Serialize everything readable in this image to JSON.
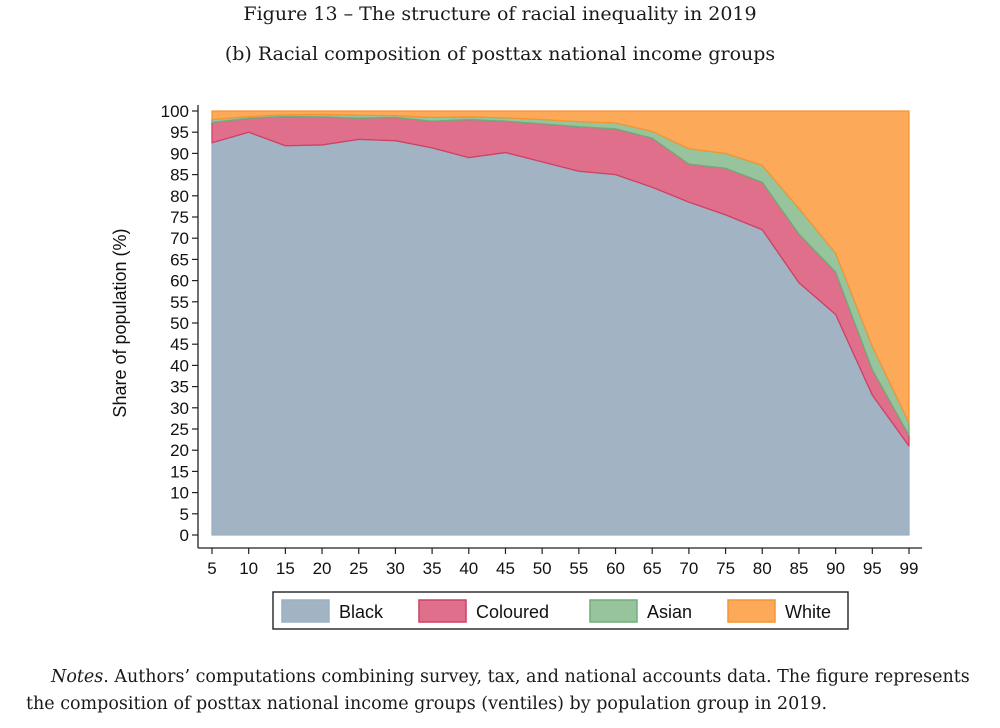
{
  "figure": {
    "title": "Figure 13 – The structure of racial inequality in 2019",
    "subtitle": "(b) Racial composition of posttax national income groups"
  },
  "chart_data": {
    "type": "area",
    "stacked": true,
    "title": "Racial composition of posttax national income groups",
    "xlabel": "",
    "ylabel": "Share of population (%)",
    "ylim": [
      0,
      100
    ],
    "yticks": [
      0,
      5,
      10,
      15,
      20,
      25,
      30,
      35,
      40,
      45,
      50,
      55,
      60,
      65,
      70,
      75,
      80,
      85,
      90,
      95,
      100
    ],
    "x": [
      "5",
      "10",
      "15",
      "20",
      "25",
      "30",
      "35",
      "40",
      "45",
      "50",
      "55",
      "60",
      "65",
      "70",
      "75",
      "80",
      "85",
      "90",
      "95",
      "99"
    ],
    "grid": true,
    "legend_position": "bottom",
    "series": [
      {
        "name": "Black",
        "color": "#a2b3c3",
        "stroke": "#9ab0c4",
        "values": [
          92.5,
          95,
          91.8,
          92,
          93.3,
          93,
          91.3,
          89,
          90.2,
          88,
          85.8,
          85,
          82,
          78.5,
          75.5,
          72,
          59.5,
          52,
          33,
          21
        ]
      },
      {
        "name": "Coloured",
        "color": "#e06f8c",
        "stroke": "#cf3f66",
        "values": [
          4.8,
          3.3,
          6.9,
          6.6,
          5,
          5.5,
          6.3,
          9,
          7.4,
          9,
          10.5,
          10.8,
          11.6,
          9,
          11,
          11.2,
          11.5,
          10,
          6,
          2.5
        ]
      },
      {
        "name": "Asian",
        "color": "#97c49d",
        "stroke": "#6fae78",
        "values": [
          0.7,
          0.4,
          0.4,
          0.6,
          0.7,
          0.4,
          0.9,
          0.6,
          0.8,
          1,
          1.2,
          1.4,
          1.6,
          3.6,
          3.5,
          4,
          6,
          4.5,
          5.5,
          3
        ]
      },
      {
        "name": "White",
        "color": "#fda95a",
        "stroke": "#f59531",
        "values": [
          2,
          1.3,
          0.9,
          0.8,
          1,
          1.1,
          1.5,
          1.4,
          1.6,
          2,
          2.5,
          2.8,
          4.8,
          8.9,
          10,
          12.8,
          23,
          33.5,
          55.5,
          73.5
        ]
      }
    ]
  },
  "notes": {
    "label": "Notes",
    "text": ". Authors’ computations combining survey, tax, and national accounts data. The figure represents the composition of posttax national income groups (ventiles) by population group in 2019."
  }
}
